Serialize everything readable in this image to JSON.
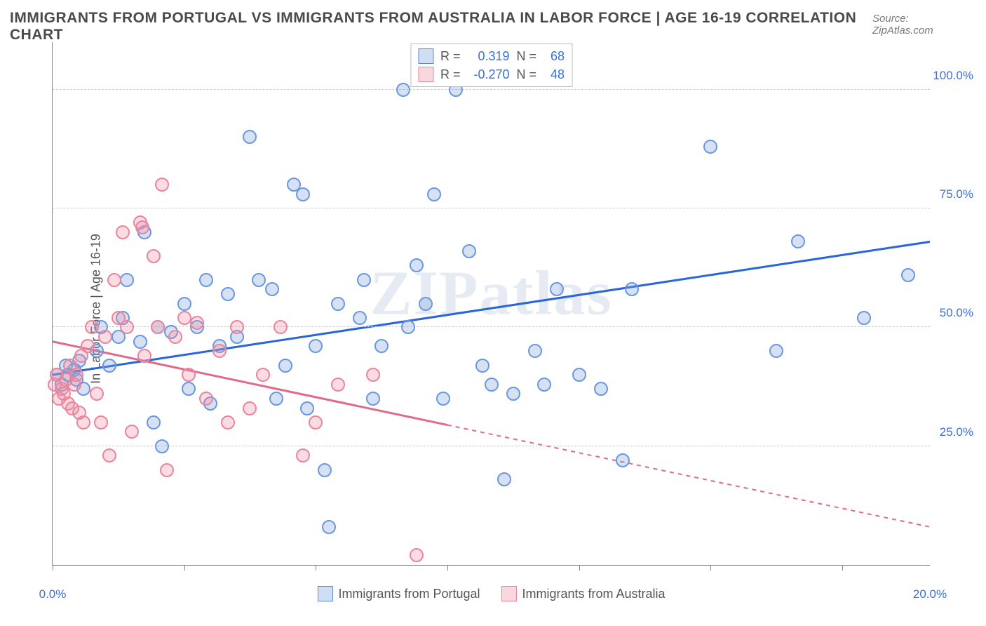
{
  "title": "IMMIGRANTS FROM PORTUGAL VS IMMIGRANTS FROM AUSTRALIA IN LABOR FORCE | AGE 16-19 CORRELATION CHART",
  "source_label": "Source: ZipAtlas.com",
  "watermark": "ZIPatlas",
  "ylabel": "In Labor Force | Age 16-19",
  "chart": {
    "type": "scatter-correlation",
    "xlim": [
      0,
      20
    ],
    "ylim": [
      0,
      110
    ],
    "x_ticks": [
      0,
      3,
      6,
      9,
      12,
      15,
      18
    ],
    "x_tick_labels": {
      "0": "0.0%",
      "20": "20.0%"
    },
    "y_gridlines": [
      25,
      50,
      75,
      100
    ],
    "y_tick_labels": {
      "25": "25.0%",
      "50": "50.0%",
      "75": "75.0%",
      "100": "100.0%"
    },
    "background_color": "#ffffff",
    "grid_color": "#cccccc",
    "axis_color": "#888888",
    "label_color": "#3a6fd8",
    "marker_radius": 10,
    "marker_opacity": 0.3,
    "line_width": 3
  },
  "series": [
    {
      "name": "Immigrants from Portugal",
      "color_fill": "rgba(120,160,220,0.3)",
      "color_stroke": "#6a98e0",
      "line_color": "#2a66d8",
      "r": "0.319",
      "n": "68",
      "trend": {
        "x1": 0,
        "y1": 40,
        "x2": 20,
        "y2": 68,
        "solid_to_x": 20
      },
      "points": [
        [
          0.1,
          40
        ],
        [
          0.2,
          38
        ],
        [
          0.3,
          42
        ],
        [
          0.35,
          40
        ],
        [
          0.5,
          41
        ],
        [
          0.55,
          39
        ],
        [
          0.6,
          43
        ],
        [
          0.7,
          37
        ],
        [
          1.0,
          45
        ],
        [
          1.1,
          50
        ],
        [
          1.3,
          42
        ],
        [
          1.5,
          48
        ],
        [
          1.6,
          52
        ],
        [
          1.7,
          60
        ],
        [
          2.0,
          47
        ],
        [
          2.1,
          70
        ],
        [
          2.3,
          30
        ],
        [
          2.4,
          50
        ],
        [
          2.5,
          25
        ],
        [
          2.7,
          49
        ],
        [
          3.0,
          55
        ],
        [
          3.1,
          37
        ],
        [
          3.3,
          50
        ],
        [
          3.5,
          60
        ],
        [
          3.6,
          34
        ],
        [
          3.8,
          46
        ],
        [
          4.0,
          57
        ],
        [
          4.2,
          48
        ],
        [
          4.5,
          90
        ],
        [
          4.7,
          60
        ],
        [
          5.0,
          58
        ],
        [
          5.1,
          35
        ],
        [
          5.3,
          42
        ],
        [
          5.5,
          80
        ],
        [
          5.7,
          78
        ],
        [
          5.8,
          33
        ],
        [
          6.0,
          46
        ],
        [
          6.2,
          20
        ],
        [
          6.3,
          8
        ],
        [
          6.5,
          55
        ],
        [
          7.0,
          52
        ],
        [
          7.1,
          60
        ],
        [
          7.3,
          35
        ],
        [
          7.5,
          46
        ],
        [
          8.0,
          100
        ],
        [
          8.1,
          50
        ],
        [
          8.3,
          63
        ],
        [
          8.5,
          55
        ],
        [
          8.7,
          78
        ],
        [
          8.9,
          35
        ],
        [
          9.2,
          100
        ],
        [
          9.5,
          66
        ],
        [
          9.8,
          42
        ],
        [
          10.0,
          38
        ],
        [
          10.3,
          18
        ],
        [
          10.5,
          36
        ],
        [
          11.0,
          45
        ],
        [
          11.2,
          38
        ],
        [
          11.5,
          58
        ],
        [
          12.0,
          40
        ],
        [
          12.5,
          37
        ],
        [
          13.0,
          22
        ],
        [
          13.2,
          58
        ],
        [
          15.0,
          88
        ],
        [
          16.5,
          45
        ],
        [
          17.0,
          68
        ],
        [
          18.5,
          52
        ],
        [
          19.5,
          61
        ]
      ]
    },
    {
      "name": "Immigrants from Australia",
      "color_fill": "rgba(240,140,160,0.3)",
      "color_stroke": "#e9859e",
      "line_color": "#e06a88",
      "r": "-0.270",
      "n": "48",
      "trend": {
        "x1": 0,
        "y1": 47,
        "x2": 20,
        "y2": 8,
        "solid_to_x": 9
      },
      "points": [
        [
          0.05,
          38
        ],
        [
          0.1,
          40
        ],
        [
          0.15,
          35
        ],
        [
          0.2,
          37
        ],
        [
          0.25,
          36
        ],
        [
          0.3,
          39
        ],
        [
          0.35,
          34
        ],
        [
          0.4,
          42
        ],
        [
          0.45,
          33
        ],
        [
          0.5,
          38
        ],
        [
          0.55,
          40
        ],
        [
          0.6,
          32
        ],
        [
          0.65,
          44
        ],
        [
          0.7,
          30
        ],
        [
          0.8,
          46
        ],
        [
          0.9,
          50
        ],
        [
          1.0,
          36
        ],
        [
          1.1,
          30
        ],
        [
          1.2,
          48
        ],
        [
          1.3,
          23
        ],
        [
          1.4,
          60
        ],
        [
          1.5,
          52
        ],
        [
          1.6,
          70
        ],
        [
          1.7,
          50
        ],
        [
          1.8,
          28
        ],
        [
          2.0,
          72
        ],
        [
          2.05,
          71
        ],
        [
          2.1,
          44
        ],
        [
          2.3,
          65
        ],
        [
          2.4,
          50
        ],
        [
          2.5,
          80
        ],
        [
          2.6,
          20
        ],
        [
          2.8,
          48
        ],
        [
          3.0,
          52
        ],
        [
          3.1,
          40
        ],
        [
          3.3,
          51
        ],
        [
          3.5,
          35
        ],
        [
          3.8,
          45
        ],
        [
          4.0,
          30
        ],
        [
          4.2,
          50
        ],
        [
          4.5,
          33
        ],
        [
          4.8,
          40
        ],
        [
          5.2,
          50
        ],
        [
          5.7,
          23
        ],
        [
          6.0,
          30
        ],
        [
          6.5,
          38
        ],
        [
          7.3,
          40
        ],
        [
          8.3,
          2
        ]
      ]
    }
  ],
  "legend_labels": {
    "r": "R =",
    "n": "N ="
  }
}
